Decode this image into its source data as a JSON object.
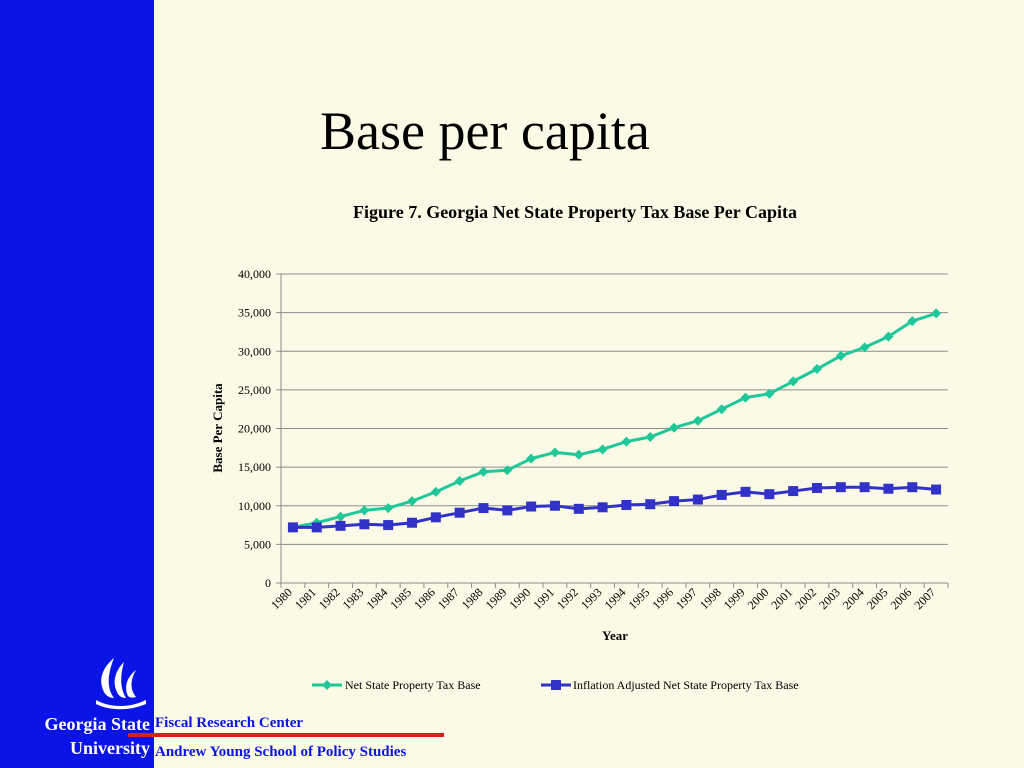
{
  "sidebar": {
    "logo_icon": "flame-logo-icon",
    "university_line1": "Georgia State",
    "university_line2": "University"
  },
  "slide": {
    "title": "Base per capita"
  },
  "footer": {
    "line1": "Fiscal Research Center",
    "line2": "Andrew Young School of Policy Studies",
    "rule_color": "#e41a1a"
  },
  "colors": {
    "sidebar": "#0a14e6",
    "background": "#fafae6",
    "series1": "#1fc799",
    "series2": "#3232c8"
  },
  "chart_data": {
    "type": "line",
    "title": "Figure 7. Georgia Net State Property Tax Base Per Capita",
    "xlabel": "Year",
    "ylabel": "Base Per Capita",
    "ylim": [
      0,
      40000
    ],
    "yticks": [
      "0",
      "5,000",
      "10,000",
      "15,000",
      "20,000",
      "25,000",
      "30,000",
      "35,000",
      "40,000"
    ],
    "grid": true,
    "legend": "bottom",
    "x": [
      "1980",
      "1981",
      "1982",
      "1983",
      "1984",
      "1985",
      "1986",
      "1987",
      "1988",
      "1989",
      "1990",
      "1991",
      "1992",
      "1993",
      "1994",
      "1995",
      "1996",
      "1997",
      "1998",
      "1999",
      "2000",
      "2001",
      "2002",
      "2003",
      "2004",
      "2005",
      "2006",
      "2007"
    ],
    "series": [
      {
        "name": "Net State Property Tax Base",
        "color": "#1fc799",
        "marker": "diamond",
        "values": [
          7200,
          7800,
          8600,
          9400,
          9700,
          10600,
          11800,
          13200,
          14400,
          14600,
          16100,
          16900,
          16600,
          17300,
          18300,
          18900,
          20100,
          21000,
          22500,
          24000,
          24500,
          26100,
          27700,
          29400,
          30500,
          31900,
          33900,
          34900
        ]
      },
      {
        "name": "Inflation Adjusted Net State Property Tax Base",
        "color": "#3232c8",
        "marker": "square",
        "values": [
          7200,
          7200,
          7400,
          7600,
          7500,
          7800,
          8500,
          9100,
          9700,
          9400,
          9900,
          10000,
          9600,
          9800,
          10100,
          10200,
          10600,
          10800,
          11400,
          11800,
          11500,
          11900,
          12300,
          12400,
          12400,
          12200,
          12400,
          12100
        ]
      }
    ]
  }
}
